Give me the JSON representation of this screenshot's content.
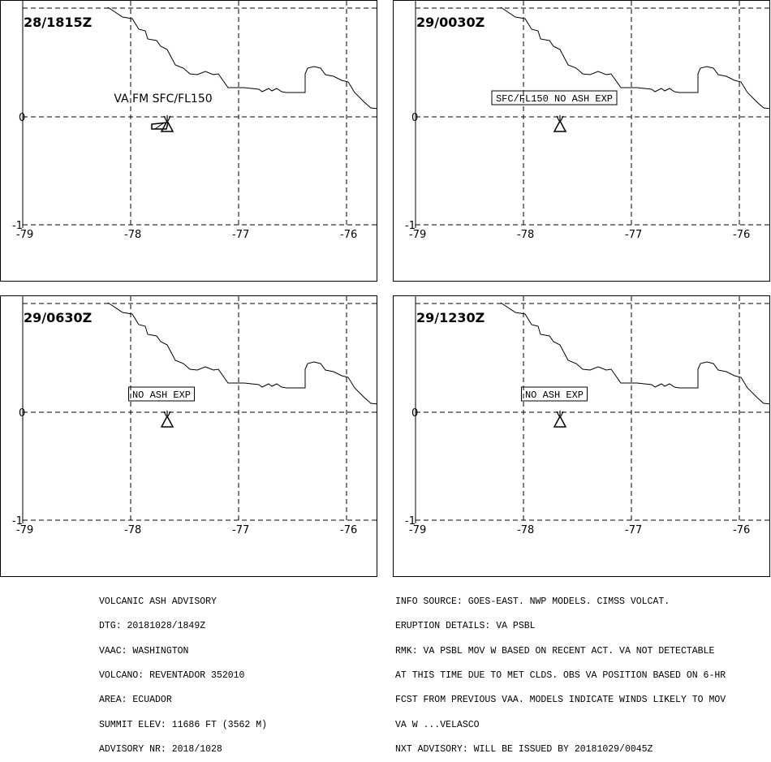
{
  "panels": [
    {
      "time": "28/1815Z",
      "label": "VA FM SFC/FL150",
      "label_boxed": false,
      "ash_area": true
    },
    {
      "time": "29/0030Z",
      "label": "SFC/FL150 NO ASH EXP",
      "label_boxed": true,
      "ash_area": false
    },
    {
      "time": "29/0630Z",
      "label": "NO ASH EXP",
      "label_boxed": true,
      "ash_area": false
    },
    {
      "time": "29/1230Z",
      "label": "NO ASH EXP",
      "label_boxed": true,
      "ash_area": false
    }
  ],
  "axes": {
    "lon_ticks": [
      "-79",
      "-78",
      "-77",
      "-76"
    ],
    "lat_ticks": [
      "0",
      "-1"
    ]
  },
  "advisory_left": [
    "VOLCANIC ASH ADVISORY",
    "DTG: 20181028/1849Z",
    "VAAC: WASHINGTON",
    "VOLCANO: REVENTADOR 352010",
    "AREA: ECUADOR",
    "SUMMIT ELEV: 11686 FT (3562 M)",
    "ADVISORY NR: 2018/1028"
  ],
  "advisory_right": [
    "INFO SOURCE: GOES-EAST. NWP MODELS. CIMSS VOLCAT.",
    "ERUPTION DETAILS: VA PSBL",
    "RMK: VA PSBL MOV W BASED ON RECENT ACT. VA NOT DETECTABLE",
    "AT THIS TIME DUE TO MET CLDS. OBS VA POSITION BASED ON 6-HR",
    "FCST FROM PREVIOUS VAA. MODELS INDICATE WINDS LIKELY TO MOV",
    "VA W ...VELASCO",
    "NXT ADVISORY: WILL BE ISSUED BY 20181029/0045Z"
  ],
  "icons": {
    "volcano": "volcano-icon"
  }
}
